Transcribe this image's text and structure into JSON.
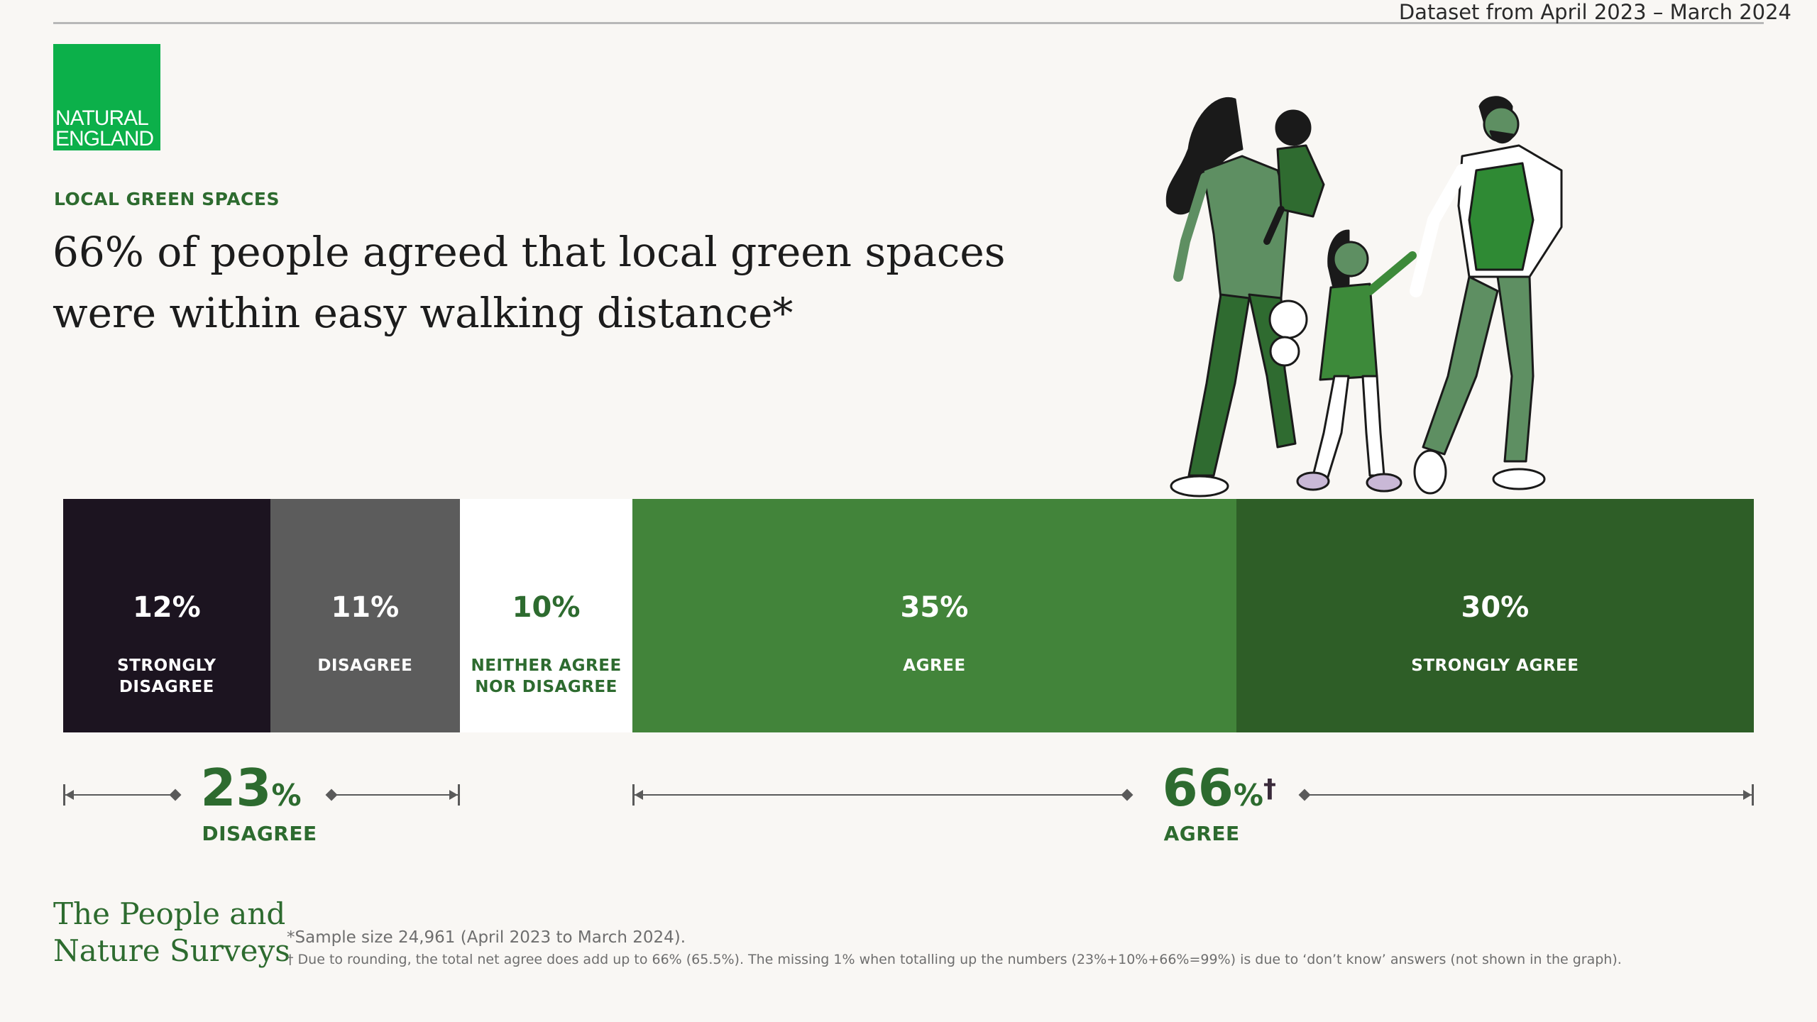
{
  "header": {
    "dataset": "Dataset from April 2023 – March 2024",
    "logo_line1": "NATURAL",
    "logo_line2": "ENGLAND",
    "kicker": "LOCAL GREEN SPACES",
    "headline_line1": "66% of people agreed that local green spaces",
    "headline_line2": "were within easy walking distance*"
  },
  "chart_data": {
    "type": "bar",
    "orientation": "horizontal-stacked",
    "categories": [
      "STRONGLY DISAGREE",
      "DISAGREE",
      "NEITHER AGREE NOR DISAGREE",
      "AGREE",
      "STRONGLY AGREE"
    ],
    "values": [
      12,
      11,
      10,
      35,
      30
    ],
    "value_labels": [
      "12%",
      "11%",
      "10%",
      "35%",
      "30%"
    ],
    "label_lines": [
      [
        "STRONGLY",
        "DISAGREE"
      ],
      [
        "DISAGREE"
      ],
      [
        "NEITHER AGREE",
        "NOR DISAGREE"
      ],
      [
        "AGREE"
      ],
      [
        "STRONGLY AGREE"
      ]
    ],
    "colors": [
      "#1c1420",
      "#5c5c5c",
      "#ffffff",
      "#42843a",
      "#2e5e27"
    ],
    "text_colors": [
      "#ffffff",
      "#ffffff",
      "#2d6b2f",
      "#ffffff",
      "#ffffff"
    ],
    "summaries": [
      {
        "value": "23",
        "unit": "%",
        "mark": "",
        "label": "DISAGREE",
        "covers": [
          0,
          1
        ]
      },
      {
        "value": "66",
        "unit": "%",
        "mark": "†",
        "label": "AGREE",
        "covers": [
          3,
          4
        ]
      }
    ]
  },
  "footer": {
    "brand_line1": "The People and",
    "brand_line2": "Nature Surveys",
    "note1": "*Sample size 24,961 (April 2023 to March 2024).",
    "note2": "† Due to rounding, the total net agree does add up to 66% (65.5%). The missing 1% when totalling up the numbers (23%+10%+66%=99%) is due to ‘don’t know’ answers (not shown in the graph)."
  }
}
